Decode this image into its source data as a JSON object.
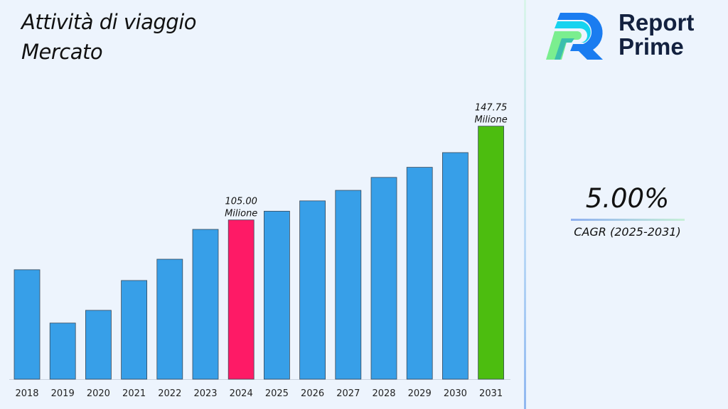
{
  "title_line1": "Attività di viaggio",
  "title_line2": "Mercato",
  "brand": {
    "line1": "Report",
    "line2": "Prime"
  },
  "cagr": {
    "value": "5.00%",
    "label": "CAGR (2025-2031)"
  },
  "colors": {
    "default_bar": "#379fe8",
    "highlight_2024": "#fe1a66",
    "highlight_2031": "#4cbd0f"
  },
  "chart_data": {
    "type": "bar",
    "categories": [
      "2018",
      "2019",
      "2020",
      "2021",
      "2022",
      "2023",
      "2024",
      "2025",
      "2026",
      "2027",
      "2028",
      "2029",
      "2030",
      "2031"
    ],
    "values": [
      82.3,
      58.0,
      63.8,
      77.4,
      87.1,
      100.7,
      105.0,
      109.0,
      113.7,
      118.5,
      124.4,
      129.0,
      135.7,
      147.75
    ],
    "ylim": [
      32.4,
      172.9
    ],
    "grid": false,
    "data_labels": [
      {
        "category": "2024",
        "value": "105.00",
        "unit": "Milione"
      },
      {
        "category": "2031",
        "value": "147.75",
        "unit": "Milione"
      }
    ],
    "xlabel": "",
    "ylabel": ""
  }
}
